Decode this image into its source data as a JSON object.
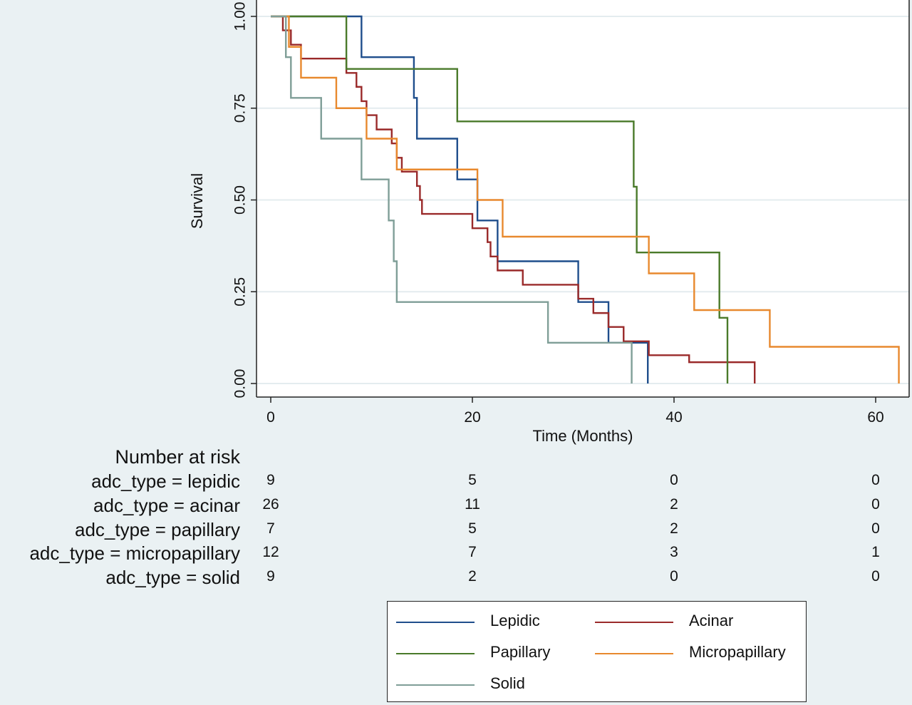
{
  "chart_data": {
    "type": "line",
    "step": true,
    "xlabel": "Time (Months)",
    "ylabel": "Survival",
    "xlim": [
      0,
      63
    ],
    "ylim": [
      0,
      1
    ],
    "xticks": [
      "0",
      "20",
      "40",
      "60"
    ],
    "yticks": [
      "0.00",
      "0.25",
      "0.50",
      "0.75",
      "1.00"
    ],
    "grid": true,
    "legend_position": "bottom",
    "series": [
      {
        "name": "Lepidic",
        "color": "#1f4e8c",
        "x": [
          0,
          9,
          14.2,
          14.5,
          18.5,
          20.5,
          22.5,
          30.5,
          33.5,
          37.4
        ],
        "y": [
          1.0,
          0.889,
          0.778,
          0.667,
          0.556,
          0.444,
          0.333,
          0.222,
          0.111,
          0.0
        ]
      },
      {
        "name": "Acinar",
        "color": "#9a2a2a",
        "x": [
          0,
          1.2,
          2,
          3,
          7.5,
          8.5,
          9,
          9.5,
          10.5,
          12,
          12.5,
          13,
          14.5,
          14.8,
          15,
          20,
          21.5,
          21.8,
          22.5,
          25,
          30.5,
          32,
          33.5,
          35,
          37.5,
          41.5,
          48
        ],
        "y": [
          1.0,
          0.962,
          0.923,
          0.885,
          0.846,
          0.808,
          0.769,
          0.731,
          0.692,
          0.654,
          0.615,
          0.577,
          0.538,
          0.5,
          0.462,
          0.423,
          0.385,
          0.346,
          0.308,
          0.269,
          0.231,
          0.192,
          0.154,
          0.115,
          0.077,
          0.058,
          0.0
        ]
      },
      {
        "name": "Papillary",
        "color": "#4a7a2a",
        "x": [
          0,
          7.5,
          18.5,
          36,
          36.3,
          44.5,
          45.3
        ],
        "y": [
          1.0,
          0.857,
          0.714,
          0.536,
          0.357,
          0.179,
          0.0
        ]
      },
      {
        "name": "Micropapillary",
        "color": "#e8892e",
        "x": [
          0,
          1.8,
          3,
          6.5,
          9.5,
          12.5,
          20.5,
          23,
          37.5,
          42,
          49.5,
          62.3
        ],
        "y": [
          1.0,
          0.917,
          0.833,
          0.75,
          0.667,
          0.583,
          0.5,
          0.4,
          0.3,
          0.2,
          0.1,
          0.0
        ]
      },
      {
        "name": "Solid",
        "color": "#7f9e97",
        "x": [
          0,
          1.5,
          2,
          5,
          9,
          11.7,
          12.2,
          12.5,
          27.5,
          35.8
        ],
        "y": [
          1.0,
          0.889,
          0.778,
          0.667,
          0.556,
          0.444,
          0.333,
          0.222,
          0.111,
          0.0
        ]
      }
    ]
  },
  "risk_table": {
    "title": "Number at risk",
    "rows": [
      {
        "label": "adc_type = lepidic",
        "counts": [
          "9",
          "5",
          "0",
          "0"
        ]
      },
      {
        "label": "adc_type = acinar",
        "counts": [
          "26",
          "11",
          "2",
          "0"
        ]
      },
      {
        "label": "adc_type = papillary",
        "counts": [
          "7",
          "5",
          "2",
          "0"
        ]
      },
      {
        "label": "adc_type = micropapillary",
        "counts": [
          "12",
          "7",
          "3",
          "1"
        ]
      },
      {
        "label": "adc_type = solid",
        "counts": [
          "9",
          "2",
          "0",
          "0"
        ]
      }
    ]
  },
  "legend": {
    "items": [
      {
        "label": "Lepidic",
        "color": "#1f4e8c"
      },
      {
        "label": "Acinar",
        "color": "#9a2a2a"
      },
      {
        "label": "Papillary",
        "color": "#4a7a2a"
      },
      {
        "label": "Micropapillary",
        "color": "#e8892e"
      },
      {
        "label": "Solid",
        "color": "#7f9e97"
      }
    ]
  }
}
